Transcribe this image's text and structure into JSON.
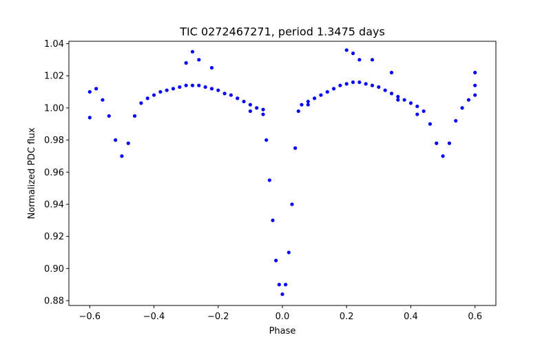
{
  "chart_data": {
    "type": "scatter",
    "title": "TIC 0272467271, period 1.3475 days",
    "xlabel": "Phase",
    "ylabel": "Normalized PDC flux",
    "xlim": [
      -0.665,
      0.665
    ],
    "ylim": [
      0.877,
      1.0415
    ],
    "x_ticks": [
      -0.6,
      -0.4,
      -0.2,
      0.0,
      0.2,
      0.4,
      0.6
    ],
    "x_tick_labels": [
      "−0.6",
      "−0.4",
      "−0.2",
      "0.0",
      "0.2",
      "0.4",
      "0.6"
    ],
    "y_ticks": [
      0.88,
      0.9,
      0.92,
      0.94,
      0.96,
      0.98,
      1.0,
      1.02,
      1.04
    ],
    "y_tick_labels": [
      "0.88",
      "0.90",
      "0.92",
      "0.94",
      "0.96",
      "0.98",
      "1.00",
      "1.02",
      "1.04"
    ],
    "grid": false,
    "legend": false,
    "marker_color": "#0000ff",
    "series": [
      {
        "points": [
          [
            -0.6,
            1.01
          ],
          [
            -0.58,
            1.012
          ],
          [
            -0.56,
            1.005
          ],
          [
            -0.54,
            0.995
          ],
          [
            -0.52,
            0.98
          ],
          [
            -0.5,
            0.97
          ],
          [
            -0.48,
            0.978
          ],
          [
            -0.46,
            0.995
          ],
          [
            -0.44,
            1.003
          ],
          [
            -0.42,
            1.006
          ],
          [
            -0.4,
            1.008
          ],
          [
            -0.38,
            1.01
          ],
          [
            -0.36,
            1.011
          ],
          [
            -0.34,
            1.012
          ],
          [
            -0.32,
            1.013
          ],
          [
            -0.3,
            1.014
          ],
          [
            -0.28,
            1.014
          ],
          [
            -0.26,
            1.014
          ],
          [
            -0.24,
            1.013
          ],
          [
            -0.22,
            1.012
          ],
          [
            -0.2,
            1.011
          ],
          [
            -0.18,
            1.009
          ],
          [
            -0.16,
            1.008
          ],
          [
            -0.14,
            1.006
          ],
          [
            -0.12,
            1.004
          ],
          [
            -0.1,
            1.002
          ],
          [
            -0.08,
            1.0
          ],
          [
            -0.06,
            0.996
          ],
          [
            -0.05,
            0.98
          ],
          [
            -0.04,
            0.955
          ],
          [
            -0.03,
            0.93
          ],
          [
            -0.02,
            0.905
          ],
          [
            -0.01,
            0.89
          ],
          [
            0.0,
            0.884
          ],
          [
            0.01,
            0.89
          ],
          [
            0.02,
            0.91
          ],
          [
            0.03,
            0.94
          ],
          [
            0.04,
            0.975
          ],
          [
            0.05,
            0.998
          ],
          [
            0.06,
            1.002
          ],
          [
            0.08,
            1.004
          ],
          [
            0.1,
            1.006
          ],
          [
            0.12,
            1.008
          ],
          [
            0.14,
            1.01
          ],
          [
            0.16,
            1.012
          ],
          [
            0.18,
            1.014
          ],
          [
            0.2,
            1.015
          ],
          [
            0.22,
            1.016
          ],
          [
            0.24,
            1.016
          ],
          [
            0.26,
            1.015
          ],
          [
            0.28,
            1.014
          ],
          [
            0.3,
            1.013
          ],
          [
            0.32,
            1.011
          ],
          [
            0.34,
            1.009
          ],
          [
            0.36,
            1.007
          ],
          [
            0.38,
            1.005
          ],
          [
            0.4,
            1.003
          ],
          [
            0.42,
            1.001
          ],
          [
            0.44,
            0.998
          ],
          [
            0.46,
            0.99
          ],
          [
            0.48,
            0.978
          ],
          [
            0.5,
            0.97
          ],
          [
            0.52,
            0.978
          ],
          [
            0.54,
            0.992
          ],
          [
            0.56,
            1.0
          ],
          [
            0.58,
            1.005
          ],
          [
            0.6,
            1.008
          ],
          [
            -0.3,
            1.028
          ],
          [
            -0.28,
            1.035
          ],
          [
            -0.26,
            1.03
          ],
          [
            -0.22,
            1.025
          ],
          [
            0.2,
            1.036
          ],
          [
            0.22,
            1.034
          ],
          [
            0.24,
            1.03
          ],
          [
            0.28,
            1.03
          ],
          [
            0.34,
            1.022
          ],
          [
            -0.6,
            0.994
          ],
          [
            0.6,
            1.022
          ],
          [
            -0.1,
            0.998
          ],
          [
            -0.06,
            0.999
          ],
          [
            0.08,
            1.002
          ],
          [
            0.36,
            1.005
          ],
          [
            0.42,
            0.996
          ],
          [
            0.6,
            1.014
          ]
        ]
      }
    ]
  }
}
